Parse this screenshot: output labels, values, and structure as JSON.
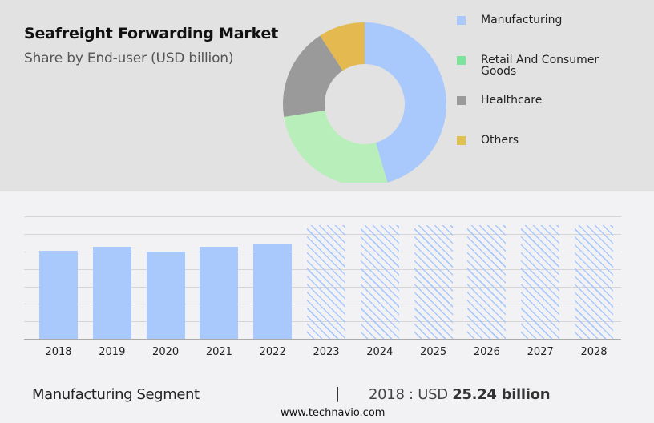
{
  "header": {
    "title": "Seafreight Forwarding Market",
    "subtitle": "Share by End-user (USD billion)"
  },
  "legend": {
    "items": [
      {
        "label": "Manufacturing",
        "color": "#a9c8fc"
      },
      {
        "label": "Retail And Consumer Goods",
        "color": "#7de39a"
      },
      {
        "label": "Healthcare",
        "color": "#9a9a9a"
      },
      {
        "label": "Others",
        "color": "#e0c050"
      }
    ]
  },
  "footer": {
    "segment_label": "Manufacturing Segment",
    "separator": "|",
    "year_prefix": "2018 : USD",
    "value": "25.24 billion",
    "url": "www.technavio.com"
  },
  "chart_data": [
    {
      "type": "pie",
      "title": "Seafreight Forwarding Market",
      "subtitle": "Share by End-user (USD billion)",
      "donut": true,
      "categories": [
        "Manufacturing",
        "Retail And Consumer Goods",
        "Healthcare",
        "Others"
      ],
      "values": [
        45.5,
        27.0,
        18.3,
        9.2
      ],
      "colors": [
        "#a9c8fc",
        "#b8eeba",
        "#9a9a9a",
        "#e4b94f"
      ],
      "legend_position": "right"
    },
    {
      "type": "bar",
      "title": "Manufacturing Segment",
      "categories": [
        "2018",
        "2019",
        "2020",
        "2021",
        "2022",
        "2023",
        "2024",
        "2025",
        "2026",
        "2027",
        "2028"
      ],
      "values": [
        25.24,
        26.3,
        25.1,
        26.3,
        27.4,
        32.6,
        32.6,
        32.6,
        32.6,
        32.6,
        32.6
      ],
      "forecast_from": "2023",
      "xlabel": "",
      "ylabel": "",
      "ylim": [
        0,
        35
      ],
      "grid": true,
      "gridlines": [
        5,
        10,
        15,
        20,
        25,
        30,
        35
      ],
      "bar_color": "#a9c8fc",
      "forecast_style": "hatched",
      "annotation": "2018 : USD 25.24 billion"
    }
  ]
}
